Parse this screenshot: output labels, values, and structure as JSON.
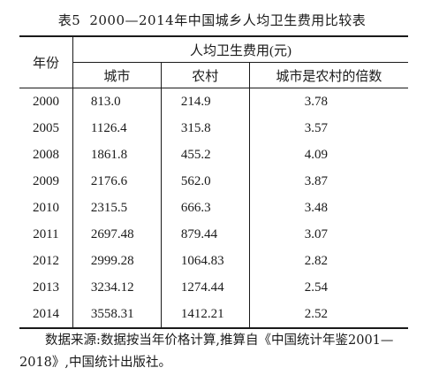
{
  "caption": {
    "label": "表5",
    "title": "2000—2014年中国城乡人均卫生费用比较表"
  },
  "table": {
    "year_header": "年份",
    "group_header": "人均卫生费用(元)",
    "sub_headers": [
      "城市",
      "农村",
      "城市是农村的倍数"
    ],
    "rows": [
      {
        "year": "2000",
        "urban": "813.0",
        "rural": "214.9",
        "ratio": "3.78"
      },
      {
        "year": "2005",
        "urban": "1126.4",
        "rural": "315.8",
        "ratio": "3.57"
      },
      {
        "year": "2008",
        "urban": "1861.8",
        "rural": "455.2",
        "ratio": "4.09"
      },
      {
        "year": "2009",
        "urban": "2176.6",
        "rural": "562.0",
        "ratio": "3.87"
      },
      {
        "year": "2010",
        "urban": "2315.5",
        "rural": "666.3",
        "ratio": "3.48"
      },
      {
        "year": "2011",
        "urban": "2697.48",
        "rural": "879.44",
        "ratio": "3.07"
      },
      {
        "year": "2012",
        "urban": "2999.28",
        "rural": "1064.83",
        "ratio": "2.82"
      },
      {
        "year": "2013",
        "urban": "3234.12",
        "rural": "1274.44",
        "ratio": "2.54"
      },
      {
        "year": "2014",
        "urban": "3558.31",
        "rural": "1412.21",
        "ratio": "2.52"
      }
    ]
  },
  "source_note": "数据来源:数据按当年价格计算,推算自《中国统计年鉴2001—2018》,中国统计出版社。"
}
